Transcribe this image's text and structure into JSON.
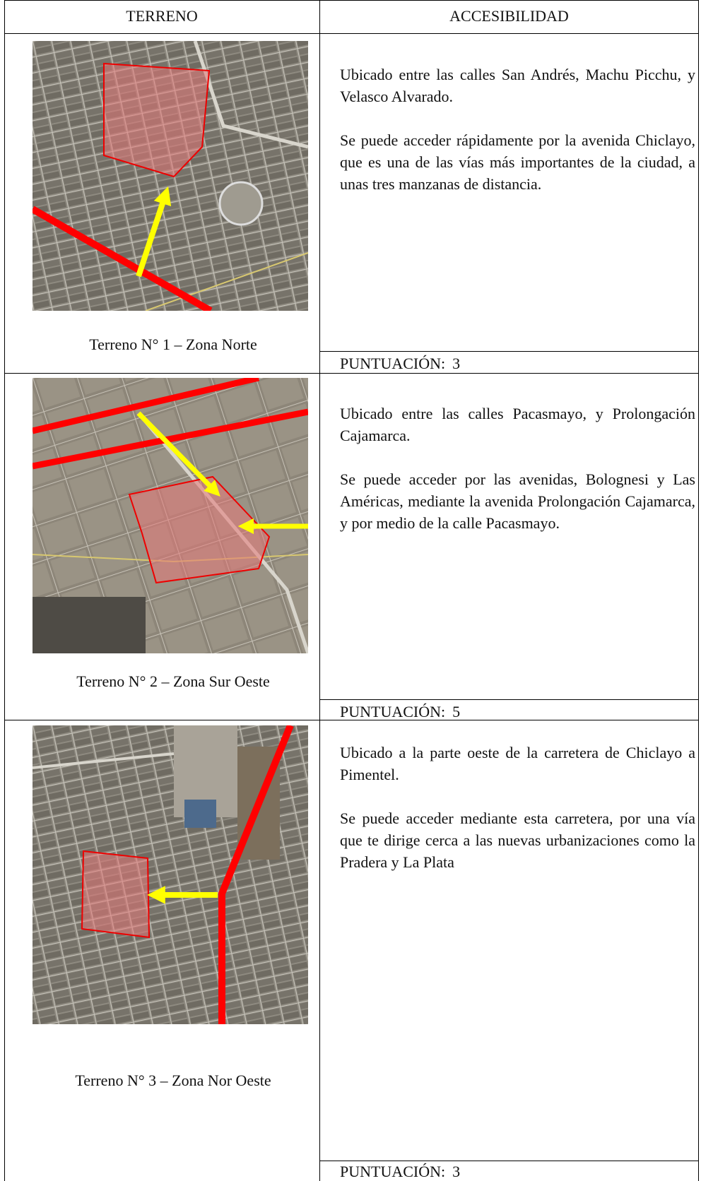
{
  "header": {
    "col1": "TERRENO",
    "col2": "ACCESIBILIDAD"
  },
  "rows": [
    {
      "caption": "Terreno N° 1 – Zona Norte",
      "paragraphs": [
        "Ubicado entre las calles San Andrés, Machu Picchu, y Velasco Alvarado.",
        "Se puede acceder rápidamente por la avenida Chiclayo, que es una de las vías más importantes de la ciudad, a unas tres manzanas de distancia."
      ],
      "score_label": "PUNTUACIÓN:",
      "score": 3
    },
    {
      "caption": "Terreno N° 2 – Zona Sur Oeste",
      "paragraphs": [
        "Ubicado entre las calles Pacasmayo, y Prolongación Cajamarca.",
        "Se puede acceder por las avenidas, Bolognesi y Las Américas, mediante la avenida Prolongación Cajamarca, y por medio de la calle Pacasmayo."
      ],
      "score_label": "PUNTUACIÓN:",
      "score": 5
    },
    {
      "caption": "Terreno N° 3 – Zona Nor Oeste",
      "paragraphs": [
        "Ubicado a la parte oeste de la carretera de Chiclayo a Pimentel.",
        "Se puede acceder mediante esta carretera, por una vía que te dirige cerca a las nuevas urbanizaciones como la Pradera y La Plata"
      ],
      "score_label": "PUNTUACIÓN:",
      "score": 3
    }
  ]
}
